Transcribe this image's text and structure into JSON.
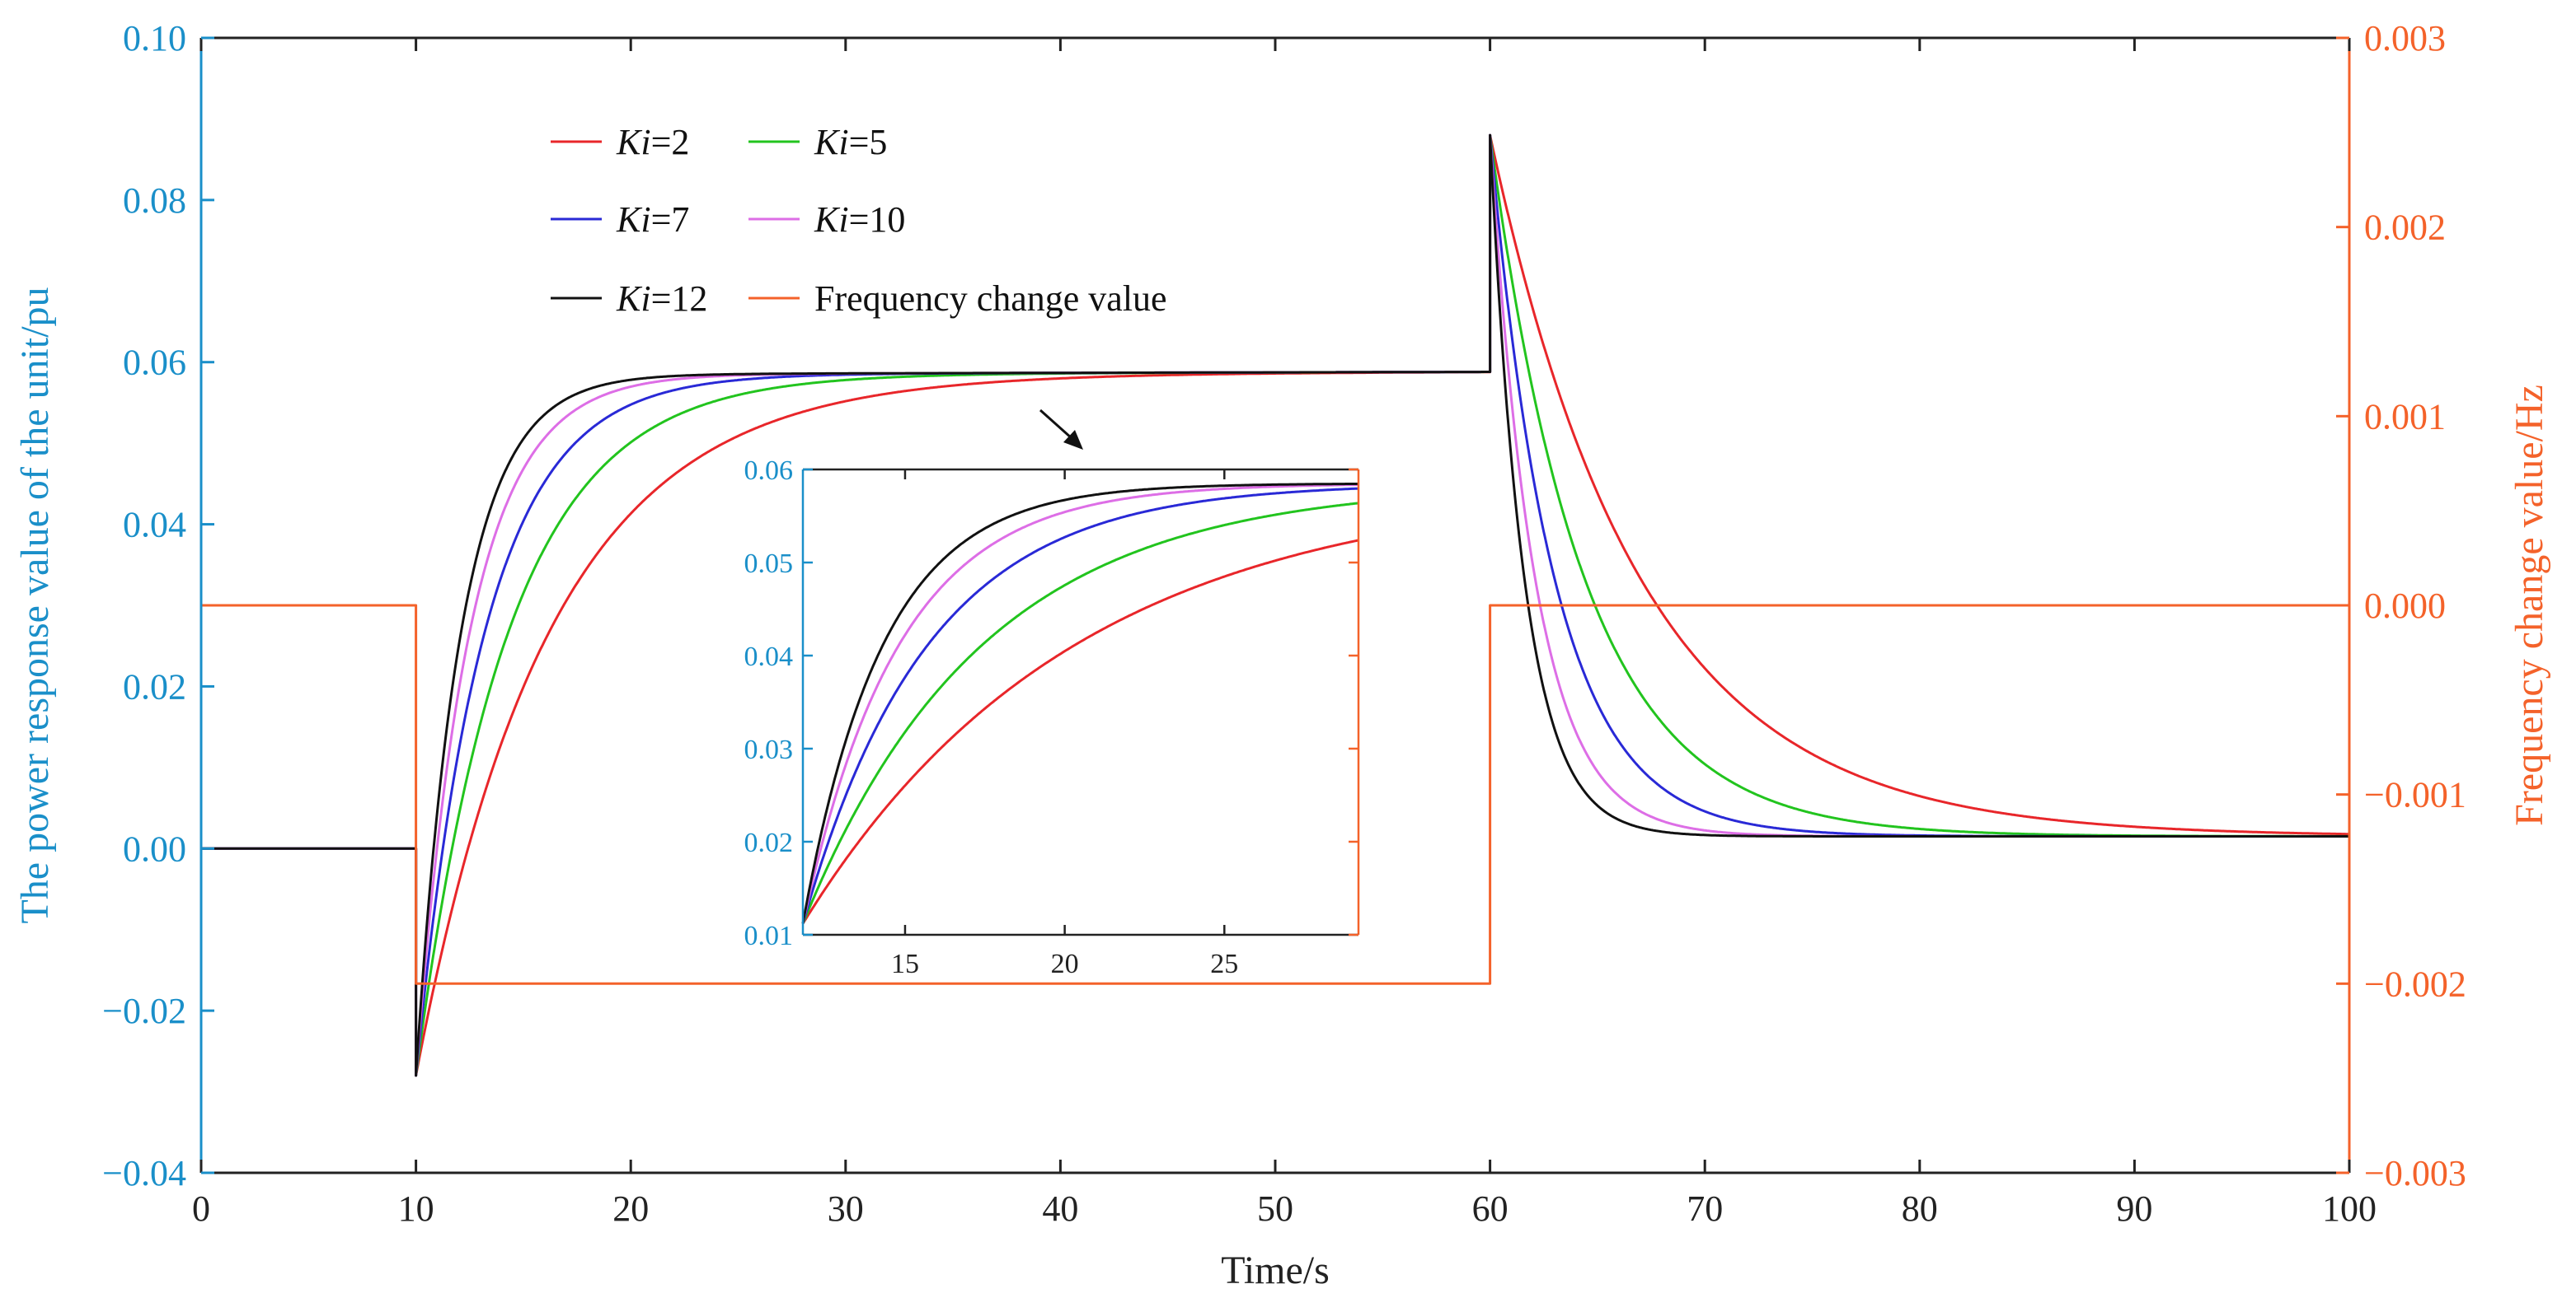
{
  "chart_data": {
    "type": "line",
    "title": "",
    "xlabel": "Time/s",
    "ylabel_left": "The power response value of the unit/pu",
    "ylabel_right": "Frequency change value/Hz",
    "xlim": [
      0,
      100
    ],
    "ylim_left": [
      -0.04,
      0.1
    ],
    "ylim_right": [
      -0.003,
      0.003
    ],
    "x_ticks": [
      0,
      10,
      20,
      30,
      40,
      50,
      60,
      70,
      80,
      90,
      100
    ],
    "y_left_ticks": [
      {
        "value": -0.04,
        "label": "−0.04"
      },
      {
        "value": -0.02,
        "label": "−0.02"
      },
      {
        "value": 0.0,
        "label": "0.00"
      },
      {
        "value": 0.02,
        "label": "0.02"
      },
      {
        "value": 0.04,
        "label": "0.04"
      },
      {
        "value": 0.06,
        "label": "0.06"
      },
      {
        "value": 0.08,
        "label": "0.08"
      },
      {
        "value": 0.1,
        "label": "0.10"
      }
    ],
    "y_right_ticks": [
      {
        "value": -0.003,
        "label": "−0.003"
      },
      {
        "value": -0.002,
        "label": "−0.002"
      },
      {
        "value": -0.001,
        "label": "−0.001"
      },
      {
        "value": 0.0,
        "label": "0.000"
      },
      {
        "value": 0.001,
        "label": "0.001"
      },
      {
        "value": 0.002,
        "label": "0.002"
      },
      {
        "value": 0.003,
        "label": "0.003"
      }
    ],
    "colors": {
      "left_axis": "#1a8fc9",
      "right_axis": "#f4622a",
      "frame": "#222222"
    },
    "legend": {
      "position": "top-left",
      "entries": [
        {
          "prefix": "Ki",
          "suffix": "=2",
          "color": "#e8262a"
        },
        {
          "prefix": "Ki",
          "suffix": "=5",
          "color": "#22c41e"
        },
        {
          "prefix": "Ki",
          "suffix": "=7",
          "color": "#2929d6"
        },
        {
          "prefix": "Ki",
          "suffix": "=10",
          "color": "#dd6ee6"
        },
        {
          "prefix": "Ki",
          "suffix": "=12",
          "color": "#111111"
        },
        {
          "prefix": "",
          "suffix": "Frequency change value",
          "color": "#f4622a"
        }
      ]
    },
    "model": {
      "step_on": 10,
      "step_off": 60,
      "dip_value": -0.028,
      "early_cross_value": 0.012,
      "plateau_value": 0.0585,
      "peak_value": 0.088,
      "final_value": 0.0015
    },
    "series": [
      {
        "name": "Ki=2",
        "axis": "left",
        "color": "#e8262a",
        "tau_rise": 6.2,
        "tau_fall": 7.0
      },
      {
        "name": "Ki=5",
        "axis": "left",
        "color": "#22c41e",
        "tau_rise": 4.3,
        "tau_fall": 4.4
      },
      {
        "name": "Ki=7",
        "axis": "left",
        "color": "#2929d6",
        "tau_rise": 3.2,
        "tau_fall": 3.0
      },
      {
        "name": "Ki=10",
        "axis": "left",
        "color": "#dd6ee6",
        "tau_rise": 2.5,
        "tau_fall": 2.1
      },
      {
        "name": "Ki=12",
        "axis": "left",
        "color": "#111111",
        "tau_rise": 2.1,
        "tau_fall": 1.6
      },
      {
        "name": "Frequency change value",
        "axis": "right",
        "color": "#f4622a",
        "x": [
          0,
          10,
          10,
          60,
          60,
          100
        ],
        "values": [
          0.0,
          0.0,
          -0.002,
          -0.002,
          0.0,
          0.0
        ]
      }
    ],
    "inset": {
      "xlim": [
        11.8,
        29.2
      ],
      "ylim": [
        0.01,
        0.06
      ],
      "x_ticks": [
        15,
        20,
        25
      ],
      "y_ticks": [
        {
          "value": 0.01,
          "label": "0.01"
        },
        {
          "value": 0.02,
          "label": "0.02"
        },
        {
          "value": 0.03,
          "label": "0.03"
        },
        {
          "value": 0.04,
          "label": "0.04"
        },
        {
          "value": 0.05,
          "label": "0.05"
        },
        {
          "value": 0.06,
          "label": "0.06"
        }
      ],
      "tau_rise": [
        8.5,
        5.6,
        3.9,
        3.0,
        2.5
      ]
    }
  }
}
